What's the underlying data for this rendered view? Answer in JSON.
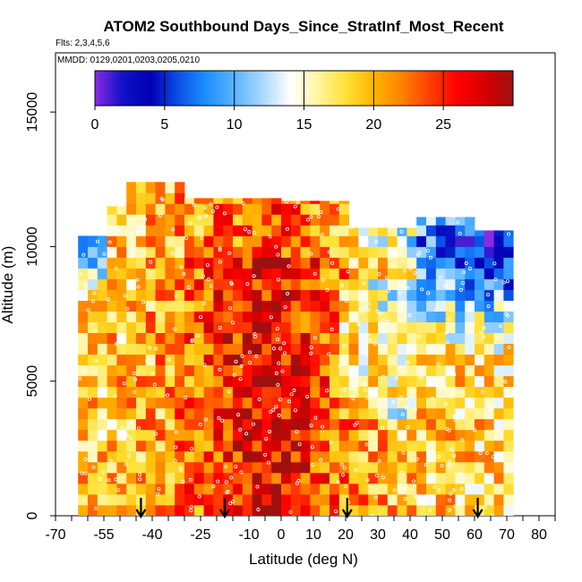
{
  "chart_data": {
    "type": "heatmap",
    "title": "ATOM2 Southbound Days_Since_StratInf_Most_Recent",
    "flights_note": "Flts: 2,3,4,5,6",
    "dates_note": "MMDD: 0129,0201,0203,0205,0210",
    "xlabel": "Latitude (deg N)",
    "ylabel": "Altitude (m)",
    "xlim": [
      -70,
      85
    ],
    "ylim": [
      0,
      17200
    ],
    "x_tick_labels": [
      "-70",
      "-55",
      "-40",
      "-25",
      "-10",
      "0",
      "10",
      "20",
      "30",
      "40",
      "50",
      "60",
      "70",
      "80"
    ],
    "x_tick_values": [
      -70,
      -55,
      -40,
      -25,
      -10,
      0,
      10,
      20,
      30,
      40,
      50,
      60,
      70,
      80
    ],
    "x_minor_step": 5,
    "y_tick_labels": [
      "0",
      "5000",
      "10000",
      "15000"
    ],
    "y_tick_values": [
      0,
      5000,
      10000,
      15000
    ],
    "colorbar": {
      "range": [
        0,
        30
      ],
      "tick_labels": [
        "0",
        "5",
        "10",
        "15",
        "20",
        "25"
      ],
      "tick_values": [
        0,
        5,
        10,
        15,
        20,
        25
      ],
      "colors": [
        "#8a2be2",
        "#1010c8",
        "#0000b4",
        "#0a50e6",
        "#1e90ff",
        "#5ab4ff",
        "#a8d8ff",
        "#ffffff",
        "#fff5a0",
        "#ffe135",
        "#ffb400",
        "#ff8200",
        "#ff4000",
        "#ff0000",
        "#d60000",
        "#9e1010"
      ]
    },
    "arrow_latitudes": [
      -43.5,
      -17.5,
      20.5,
      61
    ]
  }
}
